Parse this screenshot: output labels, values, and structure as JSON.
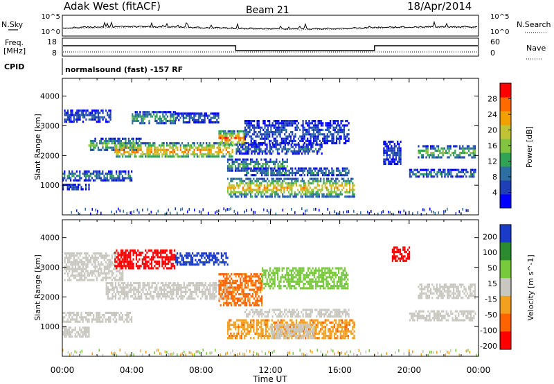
{
  "header": {
    "station": "Adak West (fitACF)",
    "beam": "Beam 21",
    "date": "18/Apr/2014"
  },
  "noise_panel": {
    "left_label": "N.Sky",
    "right_label": "N.Search",
    "left_ticks": [
      "10^5",
      "10^0"
    ],
    "right_ticks": [
      "10^5",
      "10^0"
    ]
  },
  "freq_panel": {
    "left_label_1": "Freq.",
    "left_label_2": "[MHz]",
    "right_label": "Nave",
    "left_ticks": [
      "18",
      "8"
    ],
    "right_ticks": [
      "60",
      "0"
    ]
  },
  "cpid": {
    "label": "CPID",
    "text": "normalsound (fast) -157 RF"
  },
  "colors": {
    "power": [
      "#0000ff",
      "#1f3fb5",
      "#2d6fa0",
      "#31a354",
      "#82c341",
      "#c2c236",
      "#f0a000",
      "#ff6a00",
      "#ff0000"
    ],
    "velocity": [
      "#1a3ac8",
      "#2c8b30",
      "#78c93c",
      "#c8c8c0",
      "#f2a020",
      "#ff6400",
      "#ff0000"
    ]
  },
  "chart_data": [
    {
      "type": "heatmap",
      "name": "power",
      "ylabel": "Slant Range [km]",
      "yticks": [
        "1000",
        "2000",
        "3000",
        "4000"
      ],
      "ylim": [
        0,
        4600
      ],
      "xlim": [
        0,
        24
      ],
      "colorbar_label": "Power [dB]",
      "colorbar_ticks": [
        "4",
        "8",
        "12",
        "16",
        "20",
        "24",
        "28"
      ],
      "bands": [
        {
          "t0": 0.1,
          "t1": 2.8,
          "r0": 3150,
          "r1": 3550,
          "v": 6
        },
        {
          "t0": 1.5,
          "t1": 4.5,
          "r0": 2200,
          "r1": 2600,
          "v": 14
        },
        {
          "t0": 3.0,
          "t1": 9.8,
          "r0": 1950,
          "r1": 2450,
          "v": 22
        },
        {
          "t0": 0.0,
          "t1": 4.0,
          "r0": 1200,
          "r1": 1500,
          "v": 9
        },
        {
          "t0": 0.0,
          "t1": 1.5,
          "r0": 850,
          "r1": 1050,
          "v": 6
        },
        {
          "t0": 4.0,
          "t1": 6.5,
          "r0": 3100,
          "r1": 3500,
          "v": 12
        },
        {
          "t0": 6.5,
          "t1": 9.0,
          "r0": 3150,
          "r1": 3450,
          "v": 7
        },
        {
          "t0": 9.0,
          "t1": 10.5,
          "r0": 2350,
          "r1": 2850,
          "v": 24
        },
        {
          "t0": 9.5,
          "t1": 13.0,
          "r0": 1500,
          "r1": 1900,
          "v": 12
        },
        {
          "t0": 9.5,
          "t1": 16.8,
          "r0": 650,
          "r1": 1250,
          "v": 20
        },
        {
          "t0": 10.5,
          "t1": 16.5,
          "r0": 1350,
          "r1": 1600,
          "v": 9
        },
        {
          "t0": 10.0,
          "t1": 15.0,
          "r0": 2100,
          "r1": 2400,
          "v": 7
        },
        {
          "t0": 10.5,
          "t1": 16.5,
          "r0": 2400,
          "r1": 3200,
          "v": 6
        },
        {
          "t0": 20.5,
          "t1": 23.8,
          "r0": 1950,
          "r1": 2350,
          "v": 14
        },
        {
          "t0": 20.0,
          "t1": 23.8,
          "r0": 1300,
          "r1": 1550,
          "v": 9
        },
        {
          "t0": 18.5,
          "t1": 19.5,
          "r0": 1700,
          "r1": 2500,
          "v": 5
        }
      ]
    },
    {
      "type": "heatmap",
      "name": "velocity",
      "ylabel": "Slant Range [km]",
      "yticks": [
        "1000",
        "2000",
        "3000",
        "4000"
      ],
      "ylim": [
        0,
        4600
      ],
      "xlim": [
        0,
        24
      ],
      "colorbar_label": "Velocity [m s^-1]",
      "colorbar_ticks": [
        "200",
        "100",
        "50",
        "15",
        "-15",
        "-50",
        "-100",
        "-200"
      ],
      "xlabel": "Time UT",
      "xticks": [
        "00:00",
        "04:00",
        "08:00",
        "12:00",
        "16:00",
        "20:00",
        "00:00"
      ],
      "bands": [
        {
          "t0": 0.1,
          "t1": 3.5,
          "r0": 2600,
          "r1": 3500,
          "v": 0
        },
        {
          "t0": 2.5,
          "t1": 9.8,
          "r0": 1950,
          "r1": 2500,
          "v": 0
        },
        {
          "t0": 0.0,
          "t1": 4.0,
          "r0": 1150,
          "r1": 1500,
          "v": 0
        },
        {
          "t0": 0.0,
          "t1": 1.5,
          "r0": 700,
          "r1": 1000,
          "v": 0
        },
        {
          "t0": 3.0,
          "t1": 6.5,
          "r0": 3000,
          "r1": 3600,
          "v": -160
        },
        {
          "t0": 6.5,
          "t1": 9.5,
          "r0": 3100,
          "r1": 3500,
          "v": 150
        },
        {
          "t0": 9.0,
          "t1": 11.5,
          "r0": 1700,
          "r1": 2800,
          "v": -60
        },
        {
          "t0": 9.5,
          "t1": 16.8,
          "r0": 600,
          "r1": 1250,
          "v": -40
        },
        {
          "t0": 12.0,
          "t1": 14.5,
          "r0": 600,
          "r1": 1100,
          "v": 0
        },
        {
          "t0": 10.5,
          "t1": 16.5,
          "r0": 1350,
          "r1": 1600,
          "v": 0
        },
        {
          "t0": 11.5,
          "t1": 16.5,
          "r0": 2300,
          "r1": 3000,
          "v": 30
        },
        {
          "t0": 20.5,
          "t1": 23.8,
          "r0": 1950,
          "r1": 2450,
          "v": 0
        },
        {
          "t0": 20.0,
          "t1": 23.8,
          "r0": 1250,
          "r1": 1550,
          "v": 0
        },
        {
          "t0": 19.0,
          "t1": 20.0,
          "r0": 3200,
          "r1": 3700,
          "v": -150
        }
      ]
    }
  ]
}
